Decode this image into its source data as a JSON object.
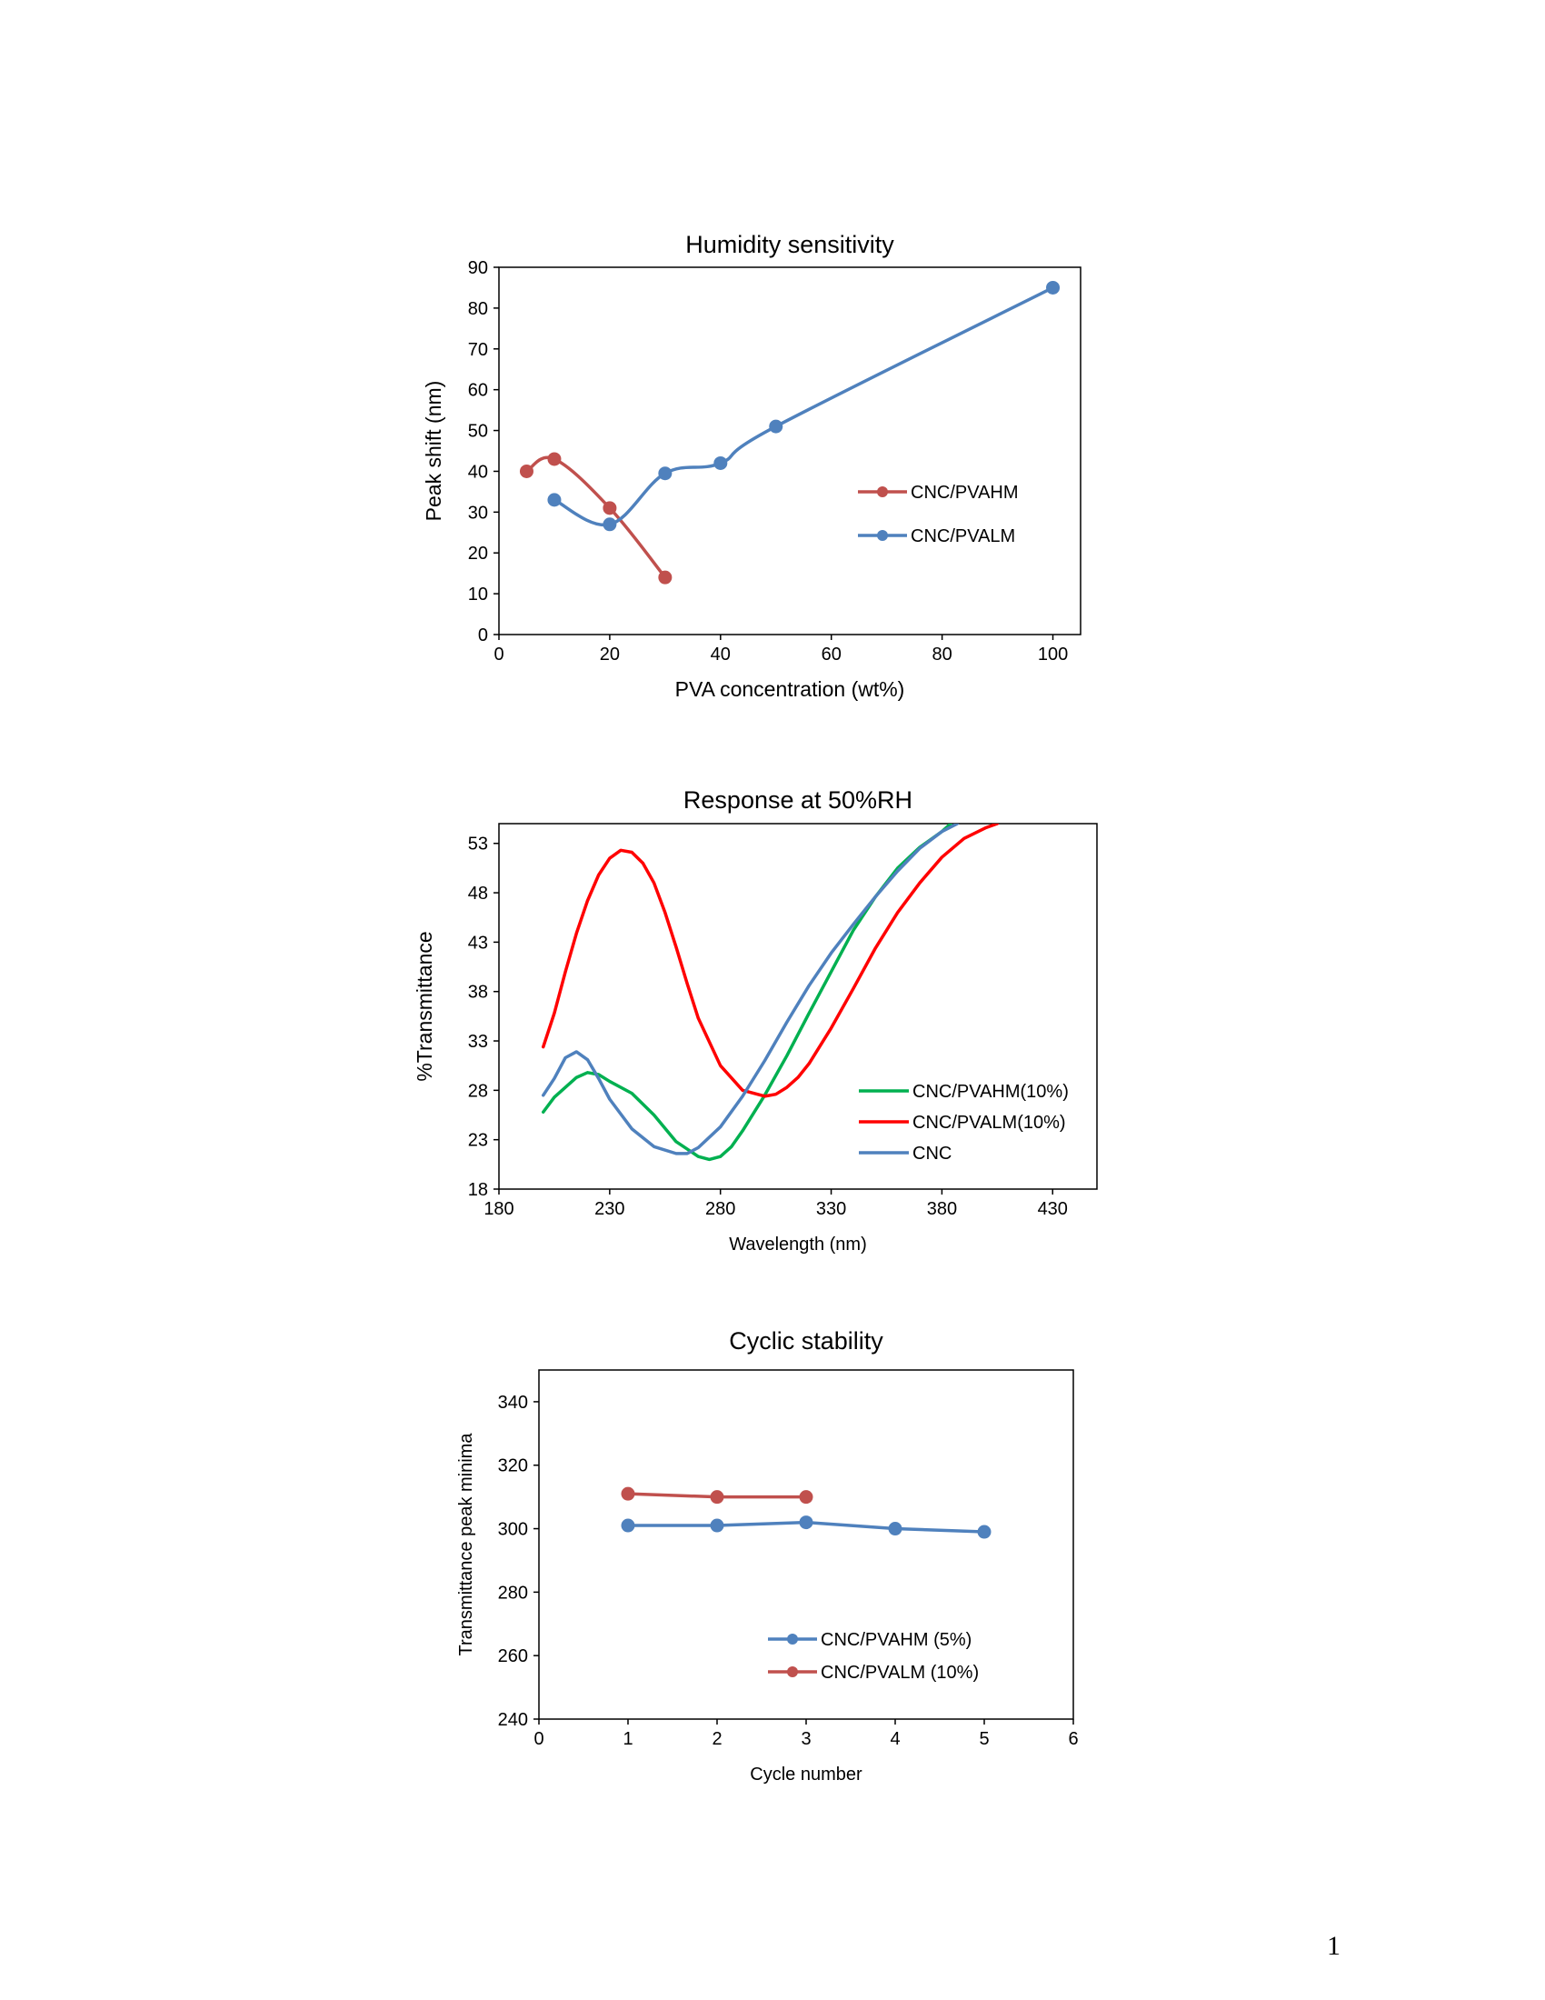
{
  "page": {
    "number": "1"
  },
  "chart_data": [
    {
      "type": "line",
      "title": "Humidity sensitivity",
      "xlabel": "PVA concentration (wt%)",
      "ylabel": "Peak shift (nm)",
      "xlim": [
        0,
        105
      ],
      "ylim": [
        0,
        90
      ],
      "xticks": [
        0,
        20,
        40,
        60,
        80,
        100
      ],
      "yticks": [
        0,
        10,
        20,
        30,
        40,
        50,
        60,
        70,
        80,
        90
      ],
      "legend_position": "right",
      "series": [
        {
          "name": "CNC/PVAHM",
          "color": "#c0504d",
          "markers": true,
          "x": [
            5,
            10,
            20,
            30
          ],
          "y": [
            40,
            43,
            31,
            14
          ]
        },
        {
          "name": "CNC/PVALM",
          "color": "#4f81bd",
          "markers": true,
          "x": [
            10,
            20,
            30,
            40,
            50,
            100
          ],
          "y": [
            33,
            27,
            39.5,
            42,
            51,
            85
          ]
        }
      ]
    },
    {
      "type": "line",
      "title": "Response at 50%RH",
      "xlabel": "Wavelength (nm)",
      "ylabel": "%Transmittance",
      "xlim": [
        180,
        450
      ],
      "ylim": [
        18,
        55
      ],
      "xticks": [
        180,
        230,
        280,
        330,
        380,
        430
      ],
      "yticks": [
        18,
        23,
        28,
        33,
        38,
        43,
        48,
        53
      ],
      "legend_position": "bottom-right",
      "series": [
        {
          "name": "CNC/PVAHM(10%)",
          "color": "#00b050",
          "markers": false,
          "x": [
            200,
            205,
            210,
            215,
            220,
            225,
            230,
            240,
            250,
            260,
            270,
            275,
            280,
            285,
            290,
            300,
            310,
            320,
            330,
            340,
            350,
            360,
            370,
            380,
            384
          ],
          "y": [
            25.8,
            27.3,
            28.3,
            29.3,
            29.8,
            29.6,
            28.9,
            27.7,
            25.5,
            22.8,
            21.3,
            21.0,
            21.3,
            22.3,
            23.9,
            27.5,
            31.5,
            35.8,
            40.0,
            44.2,
            47.6,
            50.5,
            52.6,
            54.2,
            55.0
          ]
        },
        {
          "name": "CNC/PVALM(10%)",
          "color": "#ff0000",
          "markers": false,
          "x": [
            200,
            205,
            210,
            215,
            220,
            225,
            230,
            235,
            240,
            245,
            250,
            255,
            260,
            265,
            270,
            280,
            290,
            300,
            305,
            310,
            315,
            320,
            330,
            340,
            350,
            360,
            370,
            380,
            390,
            400,
            405
          ],
          "y": [
            32.4,
            35.8,
            40.0,
            43.9,
            47.2,
            49.8,
            51.5,
            52.3,
            52.1,
            51.0,
            49.0,
            46.0,
            42.5,
            38.8,
            35.3,
            30.5,
            28.0,
            27.4,
            27.6,
            28.3,
            29.3,
            30.7,
            34.3,
            38.3,
            42.4,
            46.0,
            49.0,
            51.6,
            53.5,
            54.6,
            55.0
          ]
        },
        {
          "name": "CNC",
          "color": "#4f81bd",
          "markers": false,
          "x": [
            200,
            205,
            210,
            215,
            220,
            225,
            230,
            240,
            250,
            260,
            265,
            270,
            280,
            290,
            300,
            310,
            320,
            330,
            340,
            350,
            360,
            370,
            380,
            387
          ],
          "y": [
            27.5,
            29.2,
            31.3,
            31.9,
            31.1,
            29.2,
            27.1,
            24.1,
            22.3,
            21.6,
            21.6,
            22.2,
            24.3,
            27.4,
            31.0,
            34.9,
            38.6,
            41.9,
            44.8,
            47.6,
            50.2,
            52.5,
            54.2,
            55.0
          ]
        }
      ]
    },
    {
      "type": "line",
      "title": "Cyclic stability",
      "xlabel": "Cycle number",
      "ylabel": "Transmittance peak minima",
      "xlim": [
        0,
        6
      ],
      "ylim": [
        240,
        350
      ],
      "xticks": [
        0,
        1,
        2,
        3,
        4,
        5,
        6
      ],
      "yticks": [
        240,
        260,
        280,
        300,
        320,
        340
      ],
      "legend_position": "bottom-right",
      "series": [
        {
          "name": "CNC/PVAHM (5%)",
          "color": "#4f81bd",
          "markers": true,
          "x": [
            1,
            2,
            3,
            4,
            5
          ],
          "y": [
            301,
            301,
            302,
            300,
            299
          ]
        },
        {
          "name": "CNC/PVALM (10%)",
          "color": "#c0504d",
          "markers": true,
          "x": [
            1,
            2,
            3
          ],
          "y": [
            311,
            310,
            310
          ]
        }
      ]
    }
  ]
}
